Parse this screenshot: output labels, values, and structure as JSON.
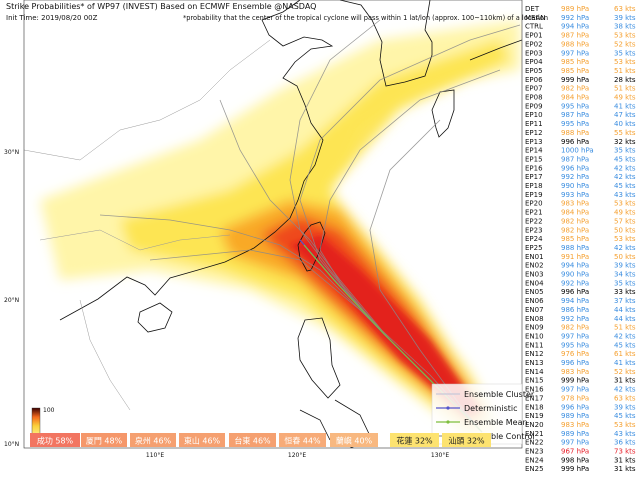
{
  "header": {
    "title": "Strike Probabilities* of WP97 (INVEST) Based on ECMWF Ensemble  @NASDAQ",
    "init_time": "Init Time: 2019/08/20 00Z",
    "note": "*probability that the center of the tropical cyclone will pass within 1 lat/lon (approx. 100~110km) of a location"
  },
  "map_labels": {
    "lat": [
      "30°N",
      "20°N",
      "10°N"
    ],
    "lon": [
      "110°E",
      "120°E",
      "130°E"
    ]
  },
  "colorbar": {
    "max": 100,
    "min": 0
  },
  "legend": [
    "Ensemble Cluster",
    "Deterministic",
    "Ensemble Mean",
    "Ensemble Control"
  ],
  "members": [
    {
      "name": "DET",
      "pressure": "989 hPa",
      "wind": "63 kts",
      "color": "#f5a030"
    },
    {
      "name": "MEAN",
      "pressure": "992 hPa",
      "wind": "39 kts",
      "color": "#3a8de0"
    },
    {
      "name": "CTRL",
      "pressure": "994 hPa",
      "wind": "38 kts",
      "color": "#3a8de0"
    },
    {
      "name": "EP01",
      "pressure": "987 hPa",
      "wind": "53 kts",
      "color": "#f5a030"
    },
    {
      "name": "EP02",
      "pressure": "988 hPa",
      "wind": "52 kts",
      "color": "#f5a030"
    },
    {
      "name": "EP03",
      "pressure": "997 hPa",
      "wind": "35 kts",
      "color": "#3a8de0"
    },
    {
      "name": "EP04",
      "pressure": "985 hPa",
      "wind": "53 kts",
      "color": "#f5a030"
    },
    {
      "name": "EP05",
      "pressure": "985 hPa",
      "wind": "51 kts",
      "color": "#f5a030"
    },
    {
      "name": "EP06",
      "pressure": "999 hPa",
      "wind": "28 kts",
      "color": "#000000"
    },
    {
      "name": "EP07",
      "pressure": "982 hPa",
      "wind": "51 kts",
      "color": "#f5a030"
    },
    {
      "name": "EP08",
      "pressure": "984 hPa",
      "wind": "49 kts",
      "color": "#f5a030"
    },
    {
      "name": "EP09",
      "pressure": "995 hPa",
      "wind": "41 kts",
      "color": "#3a8de0"
    },
    {
      "name": "EP10",
      "pressure": "987 hPa",
      "wind": "47 kts",
      "color": "#3a8de0"
    },
    {
      "name": "EP11",
      "pressure": "995 hPa",
      "wind": "40 kts",
      "color": "#3a8de0"
    },
    {
      "name": "EP12",
      "pressure": "988 hPa",
      "wind": "55 kts",
      "color": "#f5a030"
    },
    {
      "name": "EP13",
      "pressure": "996 hPa",
      "wind": "32 kts",
      "color": "#000000"
    },
    {
      "name": "EP14",
      "pressure": "1000 hPa",
      "wind": "35 kts",
      "color": "#3a8de0"
    },
    {
      "name": "EP15",
      "pressure": "987 hPa",
      "wind": "45 kts",
      "color": "#3a8de0"
    },
    {
      "name": "EP16",
      "pressure": "996 hPa",
      "wind": "42 kts",
      "color": "#3a8de0"
    },
    {
      "name": "EP17",
      "pressure": "992 hPa",
      "wind": "42 kts",
      "color": "#3a8de0"
    },
    {
      "name": "EP18",
      "pressure": "990 hPa",
      "wind": "45 kts",
      "color": "#3a8de0"
    },
    {
      "name": "EP19",
      "pressure": "993 hPa",
      "wind": "43 kts",
      "color": "#3a8de0"
    },
    {
      "name": "EP20",
      "pressure": "983 hPa",
      "wind": "53 kts",
      "color": "#f5a030"
    },
    {
      "name": "EP21",
      "pressure": "984 hPa",
      "wind": "49 kts",
      "color": "#f5a030"
    },
    {
      "name": "EP22",
      "pressure": "982 hPa",
      "wind": "57 kts",
      "color": "#f5a030"
    },
    {
      "name": "EP23",
      "pressure": "982 hPa",
      "wind": "50 kts",
      "color": "#f5a030"
    },
    {
      "name": "EP24",
      "pressure": "985 hPa",
      "wind": "53 kts",
      "color": "#f5a030"
    },
    {
      "name": "EP25",
      "pressure": "988 hPa",
      "wind": "42 kts",
      "color": "#3a8de0"
    },
    {
      "name": "EN01",
      "pressure": "991 hPa",
      "wind": "50 kts",
      "color": "#f5a030"
    },
    {
      "name": "EN02",
      "pressure": "994 hPa",
      "wind": "39 kts",
      "color": "#3a8de0"
    },
    {
      "name": "EN03",
      "pressure": "990 hPa",
      "wind": "34 kts",
      "color": "#3a8de0"
    },
    {
      "name": "EN04",
      "pressure": "992 hPa",
      "wind": "35 kts",
      "color": "#3a8de0"
    },
    {
      "name": "EN05",
      "pressure": "996 hPa",
      "wind": "33 kts",
      "color": "#000000"
    },
    {
      "name": "EN06",
      "pressure": "994 hPa",
      "wind": "37 kts",
      "color": "#3a8de0"
    },
    {
      "name": "EN07",
      "pressure": "986 hPa",
      "wind": "44 kts",
      "color": "#3a8de0"
    },
    {
      "name": "EN08",
      "pressure": "992 hPa",
      "wind": "44 kts",
      "color": "#3a8de0"
    },
    {
      "name": "EN09",
      "pressure": "982 hPa",
      "wind": "51 kts",
      "color": "#f5a030"
    },
    {
      "name": "EN10",
      "pressure": "997 hPa",
      "wind": "42 kts",
      "color": "#3a8de0"
    },
    {
      "name": "EN11",
      "pressure": "995 hPa",
      "wind": "45 kts",
      "color": "#3a8de0"
    },
    {
      "name": "EN12",
      "pressure": "976 hPa",
      "wind": "61 kts",
      "color": "#f5a030"
    },
    {
      "name": "EN13",
      "pressure": "996 hPa",
      "wind": "41 kts",
      "color": "#3a8de0"
    },
    {
      "name": "EN14",
      "pressure": "983 hPa",
      "wind": "52 kts",
      "color": "#f5a030"
    },
    {
      "name": "EN15",
      "pressure": "999 hPa",
      "wind": "31 kts",
      "color": "#000000"
    },
    {
      "name": "EN16",
      "pressure": "997 hPa",
      "wind": "42 kts",
      "color": "#3a8de0"
    },
    {
      "name": "EN17",
      "pressure": "978 hPa",
      "wind": "63 kts",
      "color": "#f5a030"
    },
    {
      "name": "EN18",
      "pressure": "996 hPa",
      "wind": "39 kts",
      "color": "#3a8de0"
    },
    {
      "name": "EN19",
      "pressure": "989 hPa",
      "wind": "45 kts",
      "color": "#3a8de0"
    },
    {
      "name": "EN20",
      "pressure": "983 hPa",
      "wind": "53 kts",
      "color": "#f5a030"
    },
    {
      "name": "EN21",
      "pressure": "989 hPa",
      "wind": "43 kts",
      "color": "#3a8de0"
    },
    {
      "name": "EN22",
      "pressure": "997 hPa",
      "wind": "36 kts",
      "color": "#3a8de0"
    },
    {
      "name": "EN23",
      "pressure": "967 hPa",
      "wind": "73 kts",
      "color": "#e8202a"
    },
    {
      "name": "EN24",
      "pressure": "998 hPa",
      "wind": "31 kts",
      "color": "#000000"
    },
    {
      "name": "EN25",
      "pressure": "999 hPa",
      "wind": "31 kts",
      "color": "#000000"
    }
  ],
  "cities": [
    {
      "label": "成功 58%",
      "color": "#f27561",
      "text": "#ffffff"
    },
    {
      "label": "厦門 48%",
      "color": "#f5976a",
      "text": "#ffffff"
    },
    {
      "label": "泉州 46%",
      "color": "#f5a070",
      "text": "#ffffff"
    },
    {
      "label": "東山 46%",
      "color": "#f5a070",
      "text": "#ffffff"
    },
    {
      "label": "台東 46%",
      "color": "#f5a070",
      "text": "#ffffff"
    },
    {
      "label": "恒春 44%",
      "color": "#f7ab78",
      "text": "#ffffff"
    },
    {
      "label": "蘭嶼 40%",
      "color": "#f8b880",
      "text": "#ffffff"
    },
    {
      "label": "花蓮 32%",
      "color": "#fde370",
      "text": "#222222"
    },
    {
      "label": "汕頭 32%",
      "color": "#fde370",
      "text": "#222222"
    }
  ]
}
